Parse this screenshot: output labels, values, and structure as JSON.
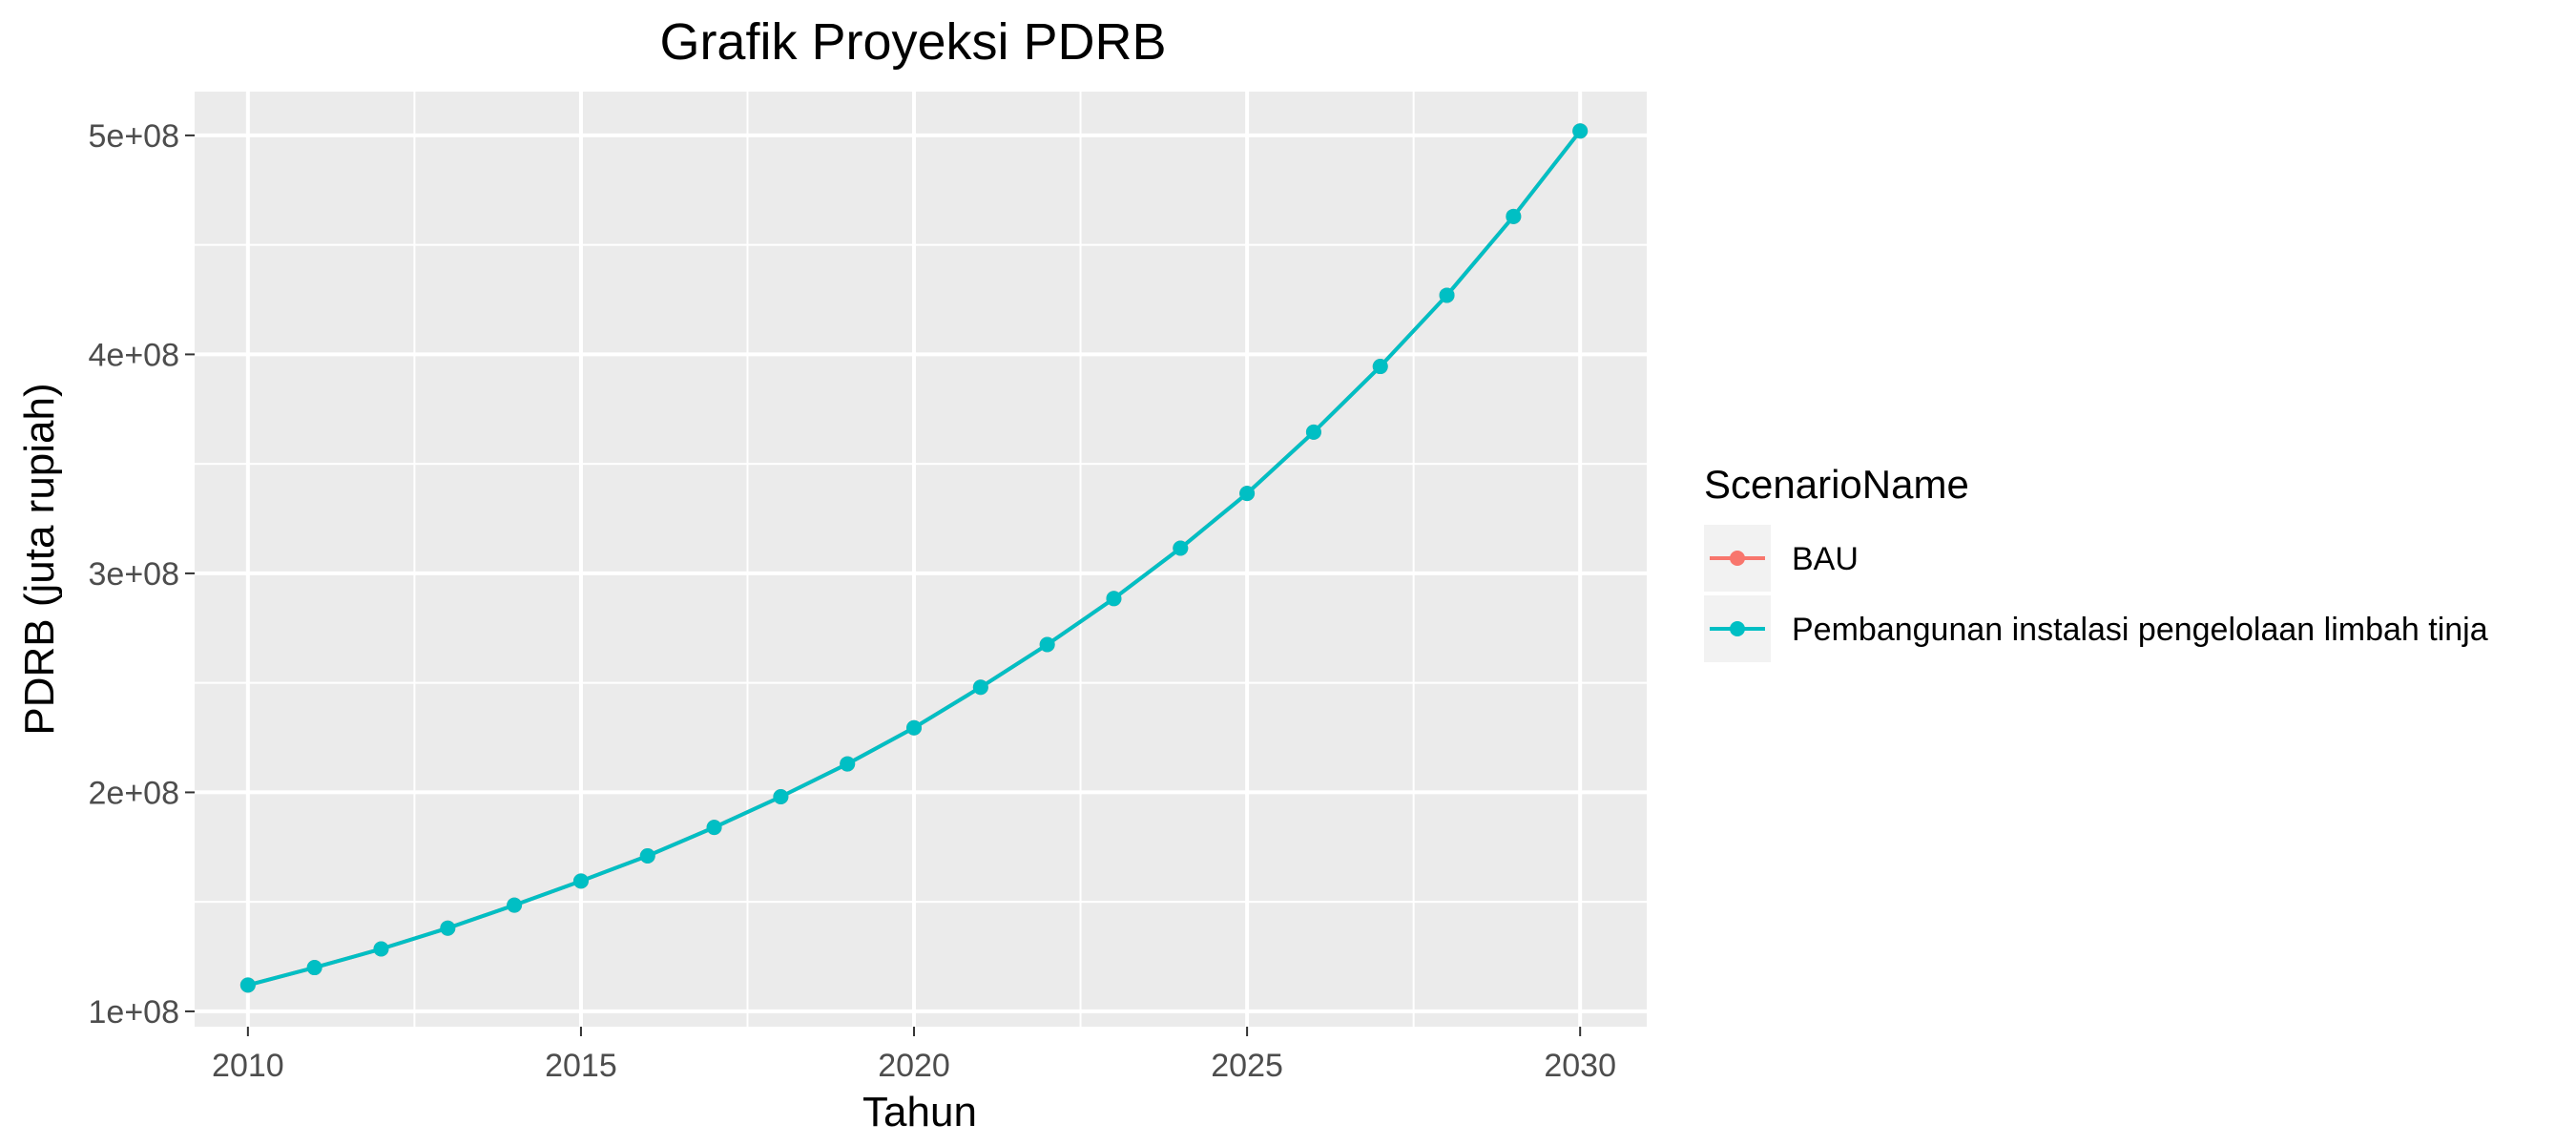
{
  "chart_data": {
    "type": "line",
    "title": "Grafik Proyeksi PDRB",
    "xlabel": "Tahun",
    "ylabel": "PDRB (juta rupiah)",
    "xlim": [
      2009.2,
      2031.0
    ],
    "ylim": [
      93000000,
      520000000
    ],
    "x_ticks": [
      2010,
      2015,
      2020,
      2025,
      2030
    ],
    "x_tick_labels": [
      "2010",
      "2015",
      "2020",
      "2025",
      "2030"
    ],
    "y_ticks": [
      100000000,
      200000000,
      300000000,
      400000000,
      500000000
    ],
    "y_tick_labels": [
      "1e+08",
      "2e+08",
      "3e+08",
      "4e+08",
      "5e+08"
    ],
    "grid": true,
    "legend": {
      "title": "ScenarioName",
      "position": "right"
    },
    "x": [
      2010,
      2011,
      2012,
      2013,
      2014,
      2015,
      2016,
      2017,
      2018,
      2019,
      2020,
      2021,
      2022,
      2023,
      2024,
      2025,
      2026,
      2027,
      2028,
      2029,
      2030
    ],
    "series": [
      {
        "name": "BAU",
        "color": "#F8766D",
        "values": [
          112000000,
          120000000,
          128500000,
          138000000,
          148500000,
          159500000,
          171000000,
          184000000,
          198000000,
          213000000,
          229500000,
          248000000,
          267500000,
          288500000,
          311500000,
          336500000,
          364500000,
          394500000,
          427000000,
          463000000,
          502000000
        ]
      },
      {
        "name": "Pembangunan instalasi pengelolaan limbah tinja",
        "color": "#00BFC4",
        "values": [
          112000000,
          120000000,
          128500000,
          138000000,
          148500000,
          159500000,
          171000000,
          184000000,
          198000000,
          213000000,
          229500000,
          248000000,
          267500000,
          288500000,
          311500000,
          336500000,
          364500000,
          394500000,
          427000000,
          463000000,
          502000000
        ]
      }
    ]
  },
  "colors": {
    "panel_background": "#EBEBEB",
    "grid_line": "#FFFFFF",
    "legend_key_background": "#F2F2F2"
  }
}
